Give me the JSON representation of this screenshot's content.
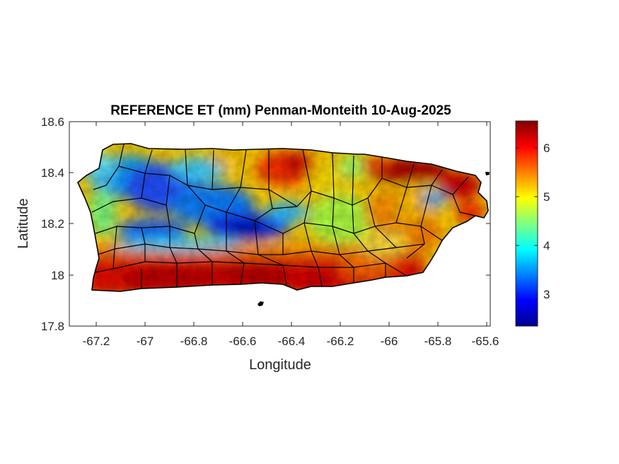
{
  "chart_data": {
    "type": "heatmap",
    "title": "REFERENCE ET (mm) Penman-Monteith 10-Aug-2025",
    "xlabel": "Longitude",
    "ylabel": "Latitude",
    "xlim": [
      -67.3,
      -65.58
    ],
    "ylim": [
      17.8,
      18.6
    ],
    "x_ticks": [
      -67.2,
      -67,
      -66.8,
      -66.6,
      -66.4,
      -66.2,
      -66,
      -65.8,
      -65.6
    ],
    "x_tick_labels": [
      "-67.2",
      "-67",
      "-66.8",
      "-66.6",
      "-66.4",
      "-66.2",
      "-66",
      "-65.8",
      "-65.6"
    ],
    "y_ticks": [
      17.8,
      18,
      18.2,
      18.4,
      18.6
    ],
    "y_tick_labels": [
      "17.8",
      "18",
      "18.2",
      "18.4",
      "18.6"
    ],
    "colorbar": {
      "colormap": "jet",
      "range": [
        2.35,
        6.55
      ],
      "ticks": [
        3,
        4,
        5,
        6
      ],
      "tick_labels": [
        "3",
        "4",
        "5",
        "6"
      ]
    },
    "grid": false,
    "legend": "none",
    "value_regions": [
      {
        "region": "south coast",
        "value": 6.3
      },
      {
        "region": "northeast coast",
        "value": 6.4
      },
      {
        "region": "north-central",
        "value": 5.8
      },
      {
        "region": "western interior",
        "value": 3.5
      },
      {
        "region": "central mountains",
        "value": 3.0
      },
      {
        "region": "east-central",
        "value": 5.0
      },
      {
        "region": "northwest corner",
        "value": 4.2
      }
    ]
  }
}
